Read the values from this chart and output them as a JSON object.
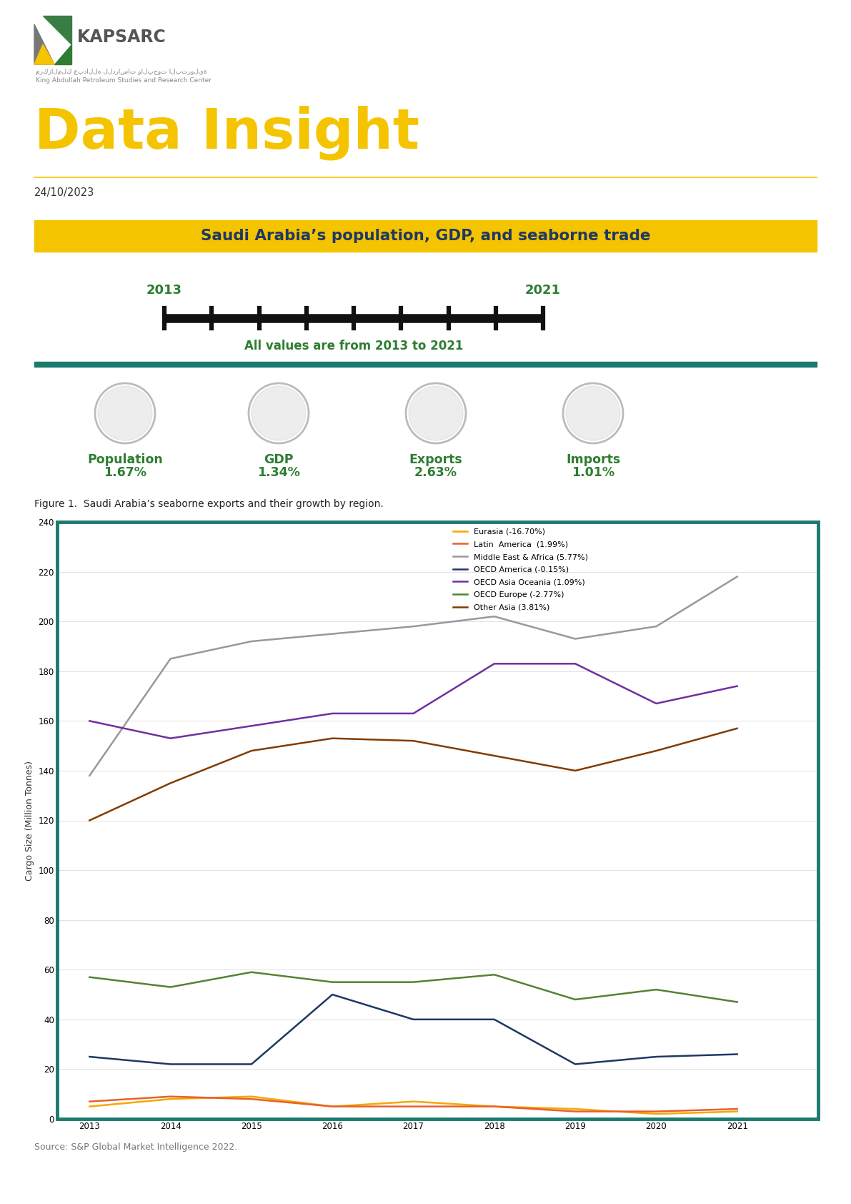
{
  "title": "Data Insight",
  "date": "24/10/2023",
  "subtitle": "Saudi Arabia’s population, GDP, and seaborne trade",
  "timeline_start": "2013",
  "timeline_end": "2021",
  "timeline_label": "All values are from 2013 to 2021",
  "stats": [
    {
      "label": "Population",
      "value": "1.67%"
    },
    {
      "label": "GDP",
      "value": "1.34%"
    },
    {
      "label": "Exports",
      "value": "2.63%"
    },
    {
      "label": "Imports",
      "value": "1.01%"
    }
  ],
  "figure_caption": "Figure 1.  Saudi Arabia’s seaborne exports and their growth by region.",
  "source": "Source: S&P Global Market Intelligence 2022.",
  "years": [
    2013,
    2014,
    2015,
    2016,
    2017,
    2018,
    2019,
    2020,
    2021
  ],
  "series": [
    {
      "name": "Eurasia (-16.70%)",
      "color": "#F5A800",
      "values": [
        5,
        8,
        9,
        5,
        7,
        5,
        4,
        2,
        3
      ]
    },
    {
      "name": "Latin  America  (1.99%)",
      "color": "#E8602C",
      "values": [
        7,
        9,
        8,
        5,
        5,
        5,
        3,
        3,
        4
      ]
    },
    {
      "name": "Middle East & Africa (5.77%)",
      "color": "#999999",
      "values": [
        138,
        185,
        192,
        195,
        198,
        202,
        193,
        198,
        218
      ]
    },
    {
      "name": "OECD America (-0.15%)",
      "color": "#1F3864",
      "values": [
        25,
        22,
        22,
        50,
        40,
        40,
        22,
        25,
        26
      ]
    },
    {
      "name": "OECD Asia Oceania (1.09%)",
      "color": "#7030A0",
      "values": [
        160,
        153,
        158,
        163,
        163,
        183,
        183,
        167,
        174
      ]
    },
    {
      "name": "OECD Europe (-2.77%)",
      "color": "#548235",
      "values": [
        57,
        53,
        59,
        55,
        55,
        58,
        48,
        52,
        47
      ]
    },
    {
      "name": "Other Asia (3.81%)",
      "color": "#833C00",
      "values": [
        120,
        135,
        148,
        153,
        152,
        146,
        140,
        148,
        157
      ]
    }
  ],
  "ylim": [
    0,
    240
  ],
  "yticks": [
    0,
    20,
    40,
    60,
    80,
    100,
    120,
    140,
    160,
    180,
    200,
    220,
    240
  ],
  "chart_box_color": "#1B7A6E",
  "title_bar_color": "#F5C400",
  "title_bar_text_color": "#1F3864",
  "timeline_color": "#2E7D32",
  "stat_label_color": "#2E7D32",
  "stat_value_color": "#2E7D32",
  "green_bar_color": "#1B7A6E",
  "data_insight_color": "#F5C400",
  "kapsarc_text_color": "#555555"
}
